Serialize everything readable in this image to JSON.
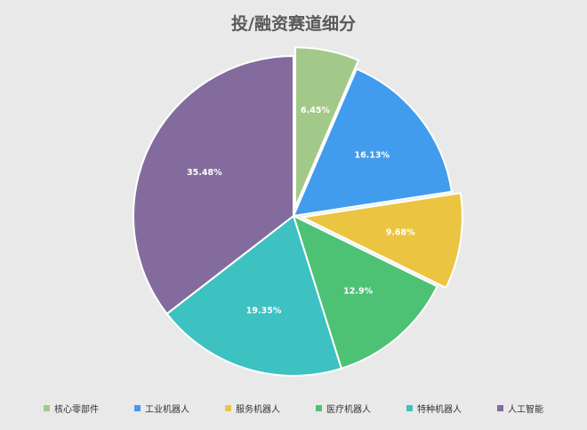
{
  "chart_data": {
    "type": "pie",
    "title": "投/融资赛道细分",
    "slices": [
      {
        "name": "核心零部件",
        "value": 6.45,
        "label": "6.45%",
        "color": "#a3c98a",
        "exploded": true
      },
      {
        "name": "工业机器人",
        "value": 16.13,
        "label": "16.13%",
        "color": "#429ced",
        "exploded": false
      },
      {
        "name": "服务机器人",
        "value": 9.68,
        "label": "9.68%",
        "color": "#ebc541",
        "exploded": true
      },
      {
        "name": "医疗机器人",
        "value": 12.9,
        "label": "12.9%",
        "color": "#4dc275",
        "exploded": false
      },
      {
        "name": "特种机器人",
        "value": 19.35,
        "label": "19.35%",
        "color": "#3dc1c1",
        "exploded": false
      },
      {
        "name": "人工智能",
        "value": 35.48,
        "label": "35.48%",
        "color": "#836b9e",
        "exploded": false
      }
    ],
    "legend_position": "bottom"
  }
}
